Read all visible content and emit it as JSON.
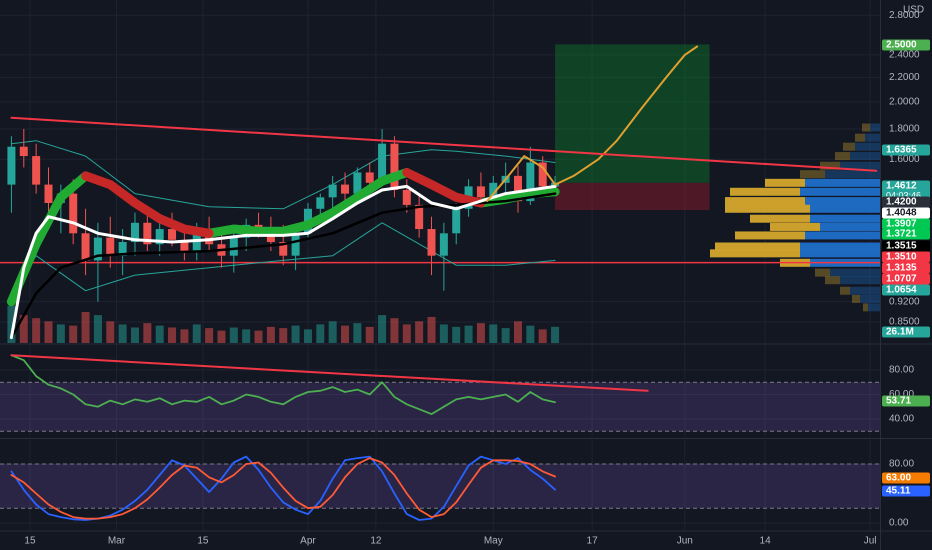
{
  "chart_data": [
    {
      "type": "candlestick",
      "log_scale": true,
      "y_unit": "USD",
      "xlim": [
        -4.85,
        137.6
      ],
      "ylim": [
        0.7835,
        2.971
      ],
      "yticks": [
        {
          "value": 2.8,
          "label": "2.8000"
        },
        {
          "value": 2.4,
          "label": "2.4000"
        },
        {
          "value": 2.2,
          "label": "2.2000"
        },
        {
          "value": 2,
          "label": "2.0000"
        },
        {
          "value": 1.8,
          "label": "1.8000"
        },
        {
          "value": 1.6,
          "label": "1.6000"
        },
        {
          "value": 0.92,
          "label": "0.9200"
        },
        {
          "value": 0.85,
          "label": "0.8500"
        }
      ],
      "grid": true,
      "up_color": "#26a69a",
      "down_color": "#ef5350",
      "x": [
        -3,
        -1,
        1,
        3,
        5,
        7,
        9,
        11,
        13,
        15,
        17,
        19,
        21,
        23,
        25,
        27,
        29,
        31,
        33,
        35,
        37,
        39,
        41,
        43,
        45,
        47,
        49,
        51,
        53,
        55,
        57,
        59,
        61,
        63,
        65,
        67,
        69,
        71,
        73,
        75,
        77,
        79,
        81,
        83,
        85
      ],
      "candles": [
        [
          1.45,
          1.75,
          1.3,
          1.68
        ],
        [
          1.68,
          1.8,
          1.55,
          1.62
        ],
        [
          1.62,
          1.7,
          1.4,
          1.45
        ],
        [
          1.45,
          1.55,
          1.3,
          1.35
        ],
        [
          1.35,
          1.45,
          1.2,
          1.4
        ],
        [
          1.4,
          1.48,
          1.15,
          1.2
        ],
        [
          1.2,
          1.32,
          1.02,
          1.08
        ],
        [
          1.08,
          1.25,
          0.92,
          1.18
        ],
        [
          1.18,
          1.28,
          1.05,
          1.1
        ],
        [
          1.1,
          1.22,
          1.02,
          1.16
        ],
        [
          1.16,
          1.3,
          1.1,
          1.25
        ],
        [
          1.25,
          1.3,
          1.12,
          1.15
        ],
        [
          1.15,
          1.28,
          1.1,
          1.22
        ],
        [
          1.22,
          1.3,
          1.14,
          1.17
        ],
        [
          1.17,
          1.24,
          1.08,
          1.12
        ],
        [
          1.12,
          1.25,
          1.08,
          1.2
        ],
        [
          1.2,
          1.28,
          1.12,
          1.15
        ],
        [
          1.15,
          1.22,
          1.05,
          1.1
        ],
        [
          1.1,
          1.2,
          1.03,
          1.18
        ],
        [
          1.18,
          1.27,
          1.12,
          1.24
        ],
        [
          1.24,
          1.3,
          1.18,
          1.22
        ],
        [
          1.22,
          1.28,
          1.12,
          1.16
        ],
        [
          1.16,
          1.24,
          1.06,
          1.1
        ],
        [
          1.1,
          1.22,
          1.04,
          1.2
        ],
        [
          1.2,
          1.35,
          1.17,
          1.32
        ],
        [
          1.32,
          1.4,
          1.26,
          1.38
        ],
        [
          1.38,
          1.5,
          1.32,
          1.45
        ],
        [
          1.45,
          1.52,
          1.36,
          1.4
        ],
        [
          1.4,
          1.55,
          1.38,
          1.52
        ],
        [
          1.52,
          1.58,
          1.42,
          1.46
        ],
        [
          1.46,
          1.8,
          1.44,
          1.7
        ],
        [
          1.7,
          1.75,
          1.38,
          1.42
        ],
        [
          1.42,
          1.48,
          1.3,
          1.34
        ],
        [
          1.34,
          1.4,
          1.18,
          1.22
        ],
        [
          1.22,
          1.28,
          1.02,
          1.1
        ],
        [
          1.1,
          1.25,
          0.96,
          1.2
        ],
        [
          1.2,
          1.35,
          1.15,
          1.32
        ],
        [
          1.32,
          1.48,
          1.28,
          1.44
        ],
        [
          1.44,
          1.52,
          1.34,
          1.38
        ],
        [
          1.38,
          1.5,
          1.35,
          1.46
        ],
        [
          1.46,
          1.58,
          1.4,
          1.5
        ],
        [
          1.5,
          1.56,
          1.3,
          1.36
        ],
        [
          1.36,
          1.68,
          1.34,
          1.58
        ],
        [
          1.58,
          1.62,
          1.4,
          1.44
        ],
        [
          1.44,
          1.5,
          1.41,
          1.4612
        ]
      ],
      "volume": {
        "values": [
          60,
          45,
          40,
          35,
          30,
          28,
          50,
          45,
          35,
          30,
          25,
          32,
          28,
          25,
          22,
          30,
          24,
          20,
          25,
          22,
          20,
          26,
          24,
          28,
          22,
          30,
          35,
          28,
          32,
          26,
          45,
          40,
          30,
          35,
          42,
          30,
          26,
          28,
          32,
          30,
          24,
          35,
          28,
          22,
          26.1
        ]
      },
      "lines": [
        {
          "color": "#26a69a",
          "width": 1,
          "x": [
            -3,
            1,
            9,
            17,
            29,
            41,
            49,
            57,
            65,
            69,
            77,
            85
          ],
          "values": [
            1.7,
            1.72,
            1.62,
            1.4,
            1.33,
            1.32,
            1.45,
            1.62,
            1.66,
            1.65,
            1.62,
            1.58
          ]
        },
        {
          "color": "#26a69a",
          "width": 1,
          "x": [
            -3,
            1,
            9,
            17,
            29,
            41,
            49,
            57,
            65,
            69,
            77,
            85
          ],
          "values": [
            0.95,
            1.1,
            0.96,
            1.02,
            1.05,
            1.08,
            1.1,
            1.25,
            1.12,
            1.06,
            1.06,
            1.08
          ]
        },
        {
          "color": "#22ab33",
          "width": 9,
          "x": [
            -3,
            1,
            5,
            9,
            13,
            17,
            21,
            25,
            29,
            33,
            37,
            41,
            45,
            49,
            53,
            57,
            61,
            65,
            69,
            73,
            77,
            81,
            85
          ],
          "values": [
            0.92,
            1.15,
            1.38,
            1.5,
            null,
            null,
            null,
            null,
            1.2,
            1.22,
            1.21,
            1.21,
            1.24,
            1.3,
            1.38,
            1.47,
            1.52,
            null,
            null,
            1.35,
            1.37,
            1.4,
            1.41
          ]
        },
        {
          "color": "#c62828",
          "width": 9,
          "x": [
            -3,
            1,
            5,
            9,
            13,
            17,
            21,
            25,
            29,
            33,
            37,
            41,
            45,
            49,
            53,
            57,
            61,
            65,
            69,
            73,
            77,
            81,
            85
          ],
          "values": [
            null,
            null,
            null,
            1.5,
            1.45,
            1.35,
            1.27,
            1.22,
            1.2,
            null,
            null,
            null,
            null,
            null,
            null,
            null,
            1.52,
            1.45,
            1.38,
            1.35,
            null,
            null,
            null
          ]
        },
        {
          "color": "#000000",
          "width": 2.5,
          "x": [
            -3,
            1,
            5,
            11,
            17,
            29,
            41,
            49,
            57,
            63,
            69,
            77,
            85
          ],
          "values": [
            0.8,
            0.95,
            1.05,
            1.1,
            1.11,
            1.12,
            1.15,
            1.2,
            1.3,
            1.33,
            1.34,
            1.36,
            1.4
          ]
        },
        {
          "color": "#ffffff",
          "width": 3,
          "x": [
            -3,
            -1,
            1,
            3,
            7,
            11,
            17,
            23,
            29,
            35,
            41,
            45,
            49,
            53,
            57,
            61,
            65,
            69,
            73,
            77,
            81,
            85
          ],
          "values": [
            0.8,
            1.05,
            1.2,
            1.28,
            1.25,
            1.2,
            1.17,
            1.16,
            1.17,
            1.19,
            1.19,
            1.2,
            1.27,
            1.35,
            1.42,
            1.44,
            1.35,
            1.32,
            1.36,
            1.4,
            1.42,
            1.44
          ]
        },
        {
          "color": "#e0a030",
          "width": 2,
          "x": [
            74,
            77,
            80,
            83,
            85,
            88,
            92,
            95,
            99,
            103,
            106,
            108
          ],
          "values": [
            1.36,
            1.48,
            1.62,
            1.55,
            1.45,
            1.5,
            1.6,
            1.72,
            1.95,
            2.2,
            2.4,
            2.48
          ]
        },
        {
          "color": "#f23645",
          "width": 2,
          "x": [
            -3,
            137
          ],
          "values": [
            1.88,
            1.53
          ]
        }
      ],
      "hlines": [
        {
          "value": 1.0707,
          "color": "#f23645"
        }
      ],
      "position": {
        "x": [
          85,
          110
        ],
        "target": 2.5,
        "entry": 1.46,
        "stop": 1.3135
      },
      "profile": {
        "levels": [
          1.81,
          1.74,
          1.68,
          1.62,
          1.56,
          1.51,
          1.46,
          1.41,
          1.36,
          1.32,
          1.27,
          1.23,
          1.19,
          1.14,
          1.11,
          1.07,
          1.03,
          1.0,
          0.96,
          0.93,
          0.9
        ],
        "up": [
          10,
          15,
          25,
          30,
          40,
          55,
          75,
          80,
          75,
          70,
          70,
          60,
          75,
          80,
          80,
          70,
          50,
          40,
          30,
          20,
          12
        ],
        "down": [
          8,
          10,
          12,
          15,
          20,
          25,
          40,
          70,
          80,
          85,
          60,
          50,
          70,
          85,
          90,
          30,
          15,
          15,
          10,
          8,
          5
        ],
        "up_color": "#1e6fc9",
        "down_color": "#d4a72c",
        "value_area": [
          1.07,
          1.46
        ]
      },
      "tags": [
        {
          "label": "2.5000",
          "color": "#4caf50"
        },
        {
          "label": "1.6365",
          "color": "#26a69a"
        },
        {
          "label": "1.4612",
          "sub": "04:03:46",
          "color": "#26a69a"
        },
        {
          "label": "1.4200",
          "color": "#2a2e39"
        },
        {
          "label": "1.4048",
          "color": "#ffffff",
          "text_color": "#131722"
        },
        {
          "label": "1.3907",
          "color": "#00c853"
        },
        {
          "label": "1.3721",
          "color": "#00c853"
        },
        {
          "label": "1.3515",
          "color": "#000000"
        },
        {
          "label": "1.3510",
          "color": "#f23645"
        },
        {
          "label": "1.3135",
          "color": "#f23645"
        },
        {
          "label": "1.0707",
          "color": "#f23645"
        },
        {
          "label": "1.0654",
          "color": "#26a69a"
        },
        {
          "label": "26.1M",
          "color": "#26a69a"
        }
      ]
    },
    {
      "type": "line",
      "xlim": [
        -4.85,
        137.6
      ],
      "ylim": [
        25.3,
        100.4
      ],
      "yticks": [
        {
          "value": 80,
          "label": "80.00"
        },
        {
          "value": 60,
          "label": "60.00"
        },
        {
          "value": 40,
          "label": "40.00"
        }
      ],
      "grid": true,
      "band": [
        30,
        70
      ],
      "band_color": "#7e57c2",
      "x": [
        -3,
        -1,
        1,
        3,
        5,
        7,
        9,
        11,
        13,
        15,
        17,
        19,
        21,
        23,
        25,
        27,
        29,
        31,
        33,
        35,
        37,
        39,
        41,
        43,
        45,
        47,
        49,
        51,
        53,
        55,
        57,
        59,
        61,
        63,
        65,
        67,
        69,
        71,
        73,
        75,
        77,
        79,
        81,
        83,
        85
      ],
      "series": [
        {
          "color": "#4caf50",
          "values": [
            92,
            88,
            75,
            68,
            65,
            60,
            52,
            50,
            55,
            52,
            56,
            54,
            57,
            52,
            55,
            54,
            58,
            52,
            55,
            60,
            58,
            54,
            52,
            58,
            62,
            63,
            66,
            62,
            64,
            60,
            70,
            58,
            52,
            48,
            44,
            50,
            56,
            58,
            56,
            58,
            60,
            54,
            62,
            56,
            53.71
          ]
        }
      ],
      "lines": [
        {
          "color": "#f23645",
          "width": 2,
          "x": [
            -3,
            100
          ],
          "values": [
            92,
            63
          ]
        }
      ],
      "tags": [
        {
          "label": "53.71",
          "color": "#4caf50"
        }
      ]
    },
    {
      "type": "line",
      "xlim": [
        -4.85,
        137.6
      ],
      "ylim": [
        -9.5,
        112.5
      ],
      "yticks": [
        {
          "value": 80,
          "label": "80.00"
        },
        {
          "value": 0,
          "label": "0.00"
        }
      ],
      "grid": true,
      "band": [
        20,
        80
      ],
      "band_color": "#7e57c2",
      "xticks": [
        {
          "value": 0,
          "label": "15"
        },
        {
          "value": 14,
          "label": "Mar"
        },
        {
          "value": 28,
          "label": "15"
        },
        {
          "value": 45,
          "label": "Apr"
        },
        {
          "value": 56,
          "label": "12"
        },
        {
          "value": 75,
          "label": "May"
        },
        {
          "value": 91,
          "label": "17"
        },
        {
          "value": 106,
          "label": "Jun"
        },
        {
          "value": 119,
          "label": "14"
        },
        {
          "value": 136,
          "label": "Jul"
        }
      ],
      "x": [
        -3,
        -1,
        1,
        3,
        5,
        7,
        9,
        11,
        13,
        15,
        17,
        19,
        21,
        23,
        25,
        27,
        29,
        31,
        33,
        35,
        37,
        39,
        41,
        43,
        45,
        47,
        49,
        51,
        53,
        55,
        57,
        59,
        61,
        63,
        65,
        67,
        69,
        71,
        73,
        75,
        77,
        79,
        81,
        83,
        85
      ],
      "series": [
        {
          "color": "#2962ff",
          "values": [
            70,
            45,
            25,
            12,
            8,
            5,
            4,
            6,
            10,
            18,
            30,
            45,
            65,
            85,
            78,
            60,
            42,
            60,
            82,
            90,
            72,
            48,
            28,
            18,
            12,
            30,
            60,
            85,
            88,
            90,
            70,
            40,
            12,
            4,
            6,
            22,
            50,
            78,
            90,
            85,
            80,
            88,
            72,
            60,
            45.11
          ]
        },
        {
          "color": "#ff5a36",
          "values": [
            65,
            55,
            40,
            25,
            15,
            8,
            6,
            6,
            8,
            12,
            20,
            32,
            48,
            65,
            78,
            75,
            62,
            55,
            65,
            80,
            82,
            68,
            48,
            30,
            20,
            22,
            38,
            62,
            80,
            88,
            82,
            65,
            40,
            18,
            8,
            12,
            28,
            52,
            75,
            85,
            85,
            84,
            80,
            70,
            63
          ]
        }
      ],
      "tags": [
        {
          "label": "63.00",
          "color": "#f57c00"
        },
        {
          "label": "45.11",
          "color": "#2962ff"
        }
      ]
    }
  ]
}
